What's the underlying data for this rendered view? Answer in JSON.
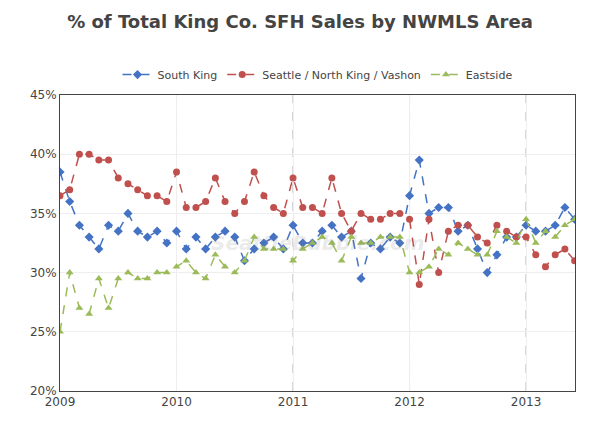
{
  "chart_data": {
    "type": "line",
    "title": "% of Total King Co. SFH Sales by NWMLS Area",
    "x": [
      2009,
      2009.0833333333333,
      2009.1666666666667,
      2009.25,
      2009.3333333333333,
      2009.4166666666667,
      2009.5,
      2009.5833333333333,
      2009.6666666666667,
      2009.75,
      2009.8333333333333,
      2009.9166666666667,
      2010,
      2010.0833333333333,
      2010.1666666666667,
      2010.25,
      2010.3333333333333,
      2010.4166666666667,
      2010.5,
      2010.5833333333333,
      2010.6666666666667,
      2010.75,
      2010.8333333333333,
      2010.9166666666667,
      2011,
      2011.0833333333333,
      2011.1666666666667,
      2011.25,
      2011.3333333333333,
      2011.4166666666667,
      2011.5,
      2011.5833333333333,
      2011.6666666666667,
      2011.75,
      2011.8333333333333,
      2011.9166666666667,
      2012,
      2012.0833333333333,
      2012.1666666666667,
      2012.25,
      2012.3333333333333,
      2012.4166666666667,
      2012.5,
      2012.5833333333333,
      2012.6666666666667,
      2012.75,
      2012.8333333333333,
      2012.9166666666667,
      2013,
      2013.0833333333333,
      2013.1666666666667,
      2013.25,
      2013.3333333333333,
      2013.4166666666667
    ],
    "series": [
      {
        "name": "South King",
        "color": "#4472C4",
        "marker": "diamond",
        "line_style": "dashed",
        "values": [
          38.5,
          36.0,
          34.0,
          33.0,
          32.0,
          34.0,
          33.5,
          35.0,
          33.5,
          33.0,
          33.5,
          32.5,
          33.5,
          32.0,
          33.0,
          32.0,
          33.0,
          33.5,
          33.0,
          31.0,
          32.0,
          32.5,
          33.0,
          32.0,
          34.0,
          32.5,
          32.5,
          33.5,
          34.0,
          33.0,
          33.5,
          29.5,
          32.5,
          32.0,
          33.0,
          32.5,
          36.5,
          39.5,
          35.0,
          35.5,
          35.5,
          33.5,
          34.0,
          32.0,
          30.0,
          31.5,
          33.0,
          33.0,
          34.0,
          33.5,
          33.5,
          34.0,
          35.5,
          34.5
        ]
      },
      {
        "name": "Seattle / North King / Vashon",
        "color": "#C0504D",
        "marker": "circle",
        "line_style": "dashed",
        "values": [
          36.5,
          37.0,
          40.0,
          40.0,
          39.5,
          39.5,
          38.0,
          37.5,
          37.0,
          36.5,
          36.5,
          36.0,
          38.5,
          35.5,
          35.5,
          36.0,
          38.0,
          36.0,
          35.0,
          36.0,
          38.5,
          36.5,
          35.5,
          35.0,
          38.0,
          35.5,
          35.5,
          35.0,
          38.0,
          35.0,
          33.5,
          35.0,
          34.5,
          34.5,
          35.0,
          35.0,
          34.5,
          29.0,
          34.5,
          30.0,
          33.5,
          34.0,
          34.0,
          33.0,
          32.5,
          34.0,
          33.5,
          33.0,
          33.0,
          31.5,
          30.5,
          31.5,
          32.0,
          31.0
        ]
      },
      {
        "name": "Eastside",
        "color": "#9BBB59",
        "marker": "triangle",
        "line_style": "dashed",
        "values": [
          25.0,
          30.0,
          27.0,
          26.5,
          29.5,
          27.0,
          29.5,
          30.0,
          29.5,
          29.5,
          30.0,
          30.0,
          30.5,
          31.0,
          30.0,
          29.5,
          31.5,
          30.5,
          30.0,
          31.0,
          33.0,
          32.0,
          32.0,
          32.0,
          31.0,
          32.0,
          32.5,
          33.0,
          32.5,
          31.0,
          33.0,
          32.5,
          32.5,
          33.0,
          33.0,
          33.0,
          30.0,
          30.0,
          30.5,
          32.0,
          31.5,
          32.5,
          32.0,
          31.5,
          31.5,
          33.5,
          33.0,
          32.5,
          34.5,
          32.5,
          33.5,
          33.0,
          34.0,
          34.5
        ]
      }
    ],
    "xlim": [
      2009.0,
      2013.42
    ],
    "xticks": [
      2009,
      2010,
      2011,
      2012,
      2013
    ],
    "ylim": [
      20,
      45
    ],
    "yticks": [
      {
        "value": 20,
        "label": "20%"
      },
      {
        "value": 25,
        "label": "25%"
      },
      {
        "value": 30,
        "label": "30%"
      },
      {
        "value": 35,
        "label": "35%"
      },
      {
        "value": 40,
        "label": "40%"
      },
      {
        "value": 45,
        "label": "45%"
      }
    ],
    "grid": true,
    "legend": "top",
    "annotations": [
      "SeattleBubble.com"
    ]
  }
}
